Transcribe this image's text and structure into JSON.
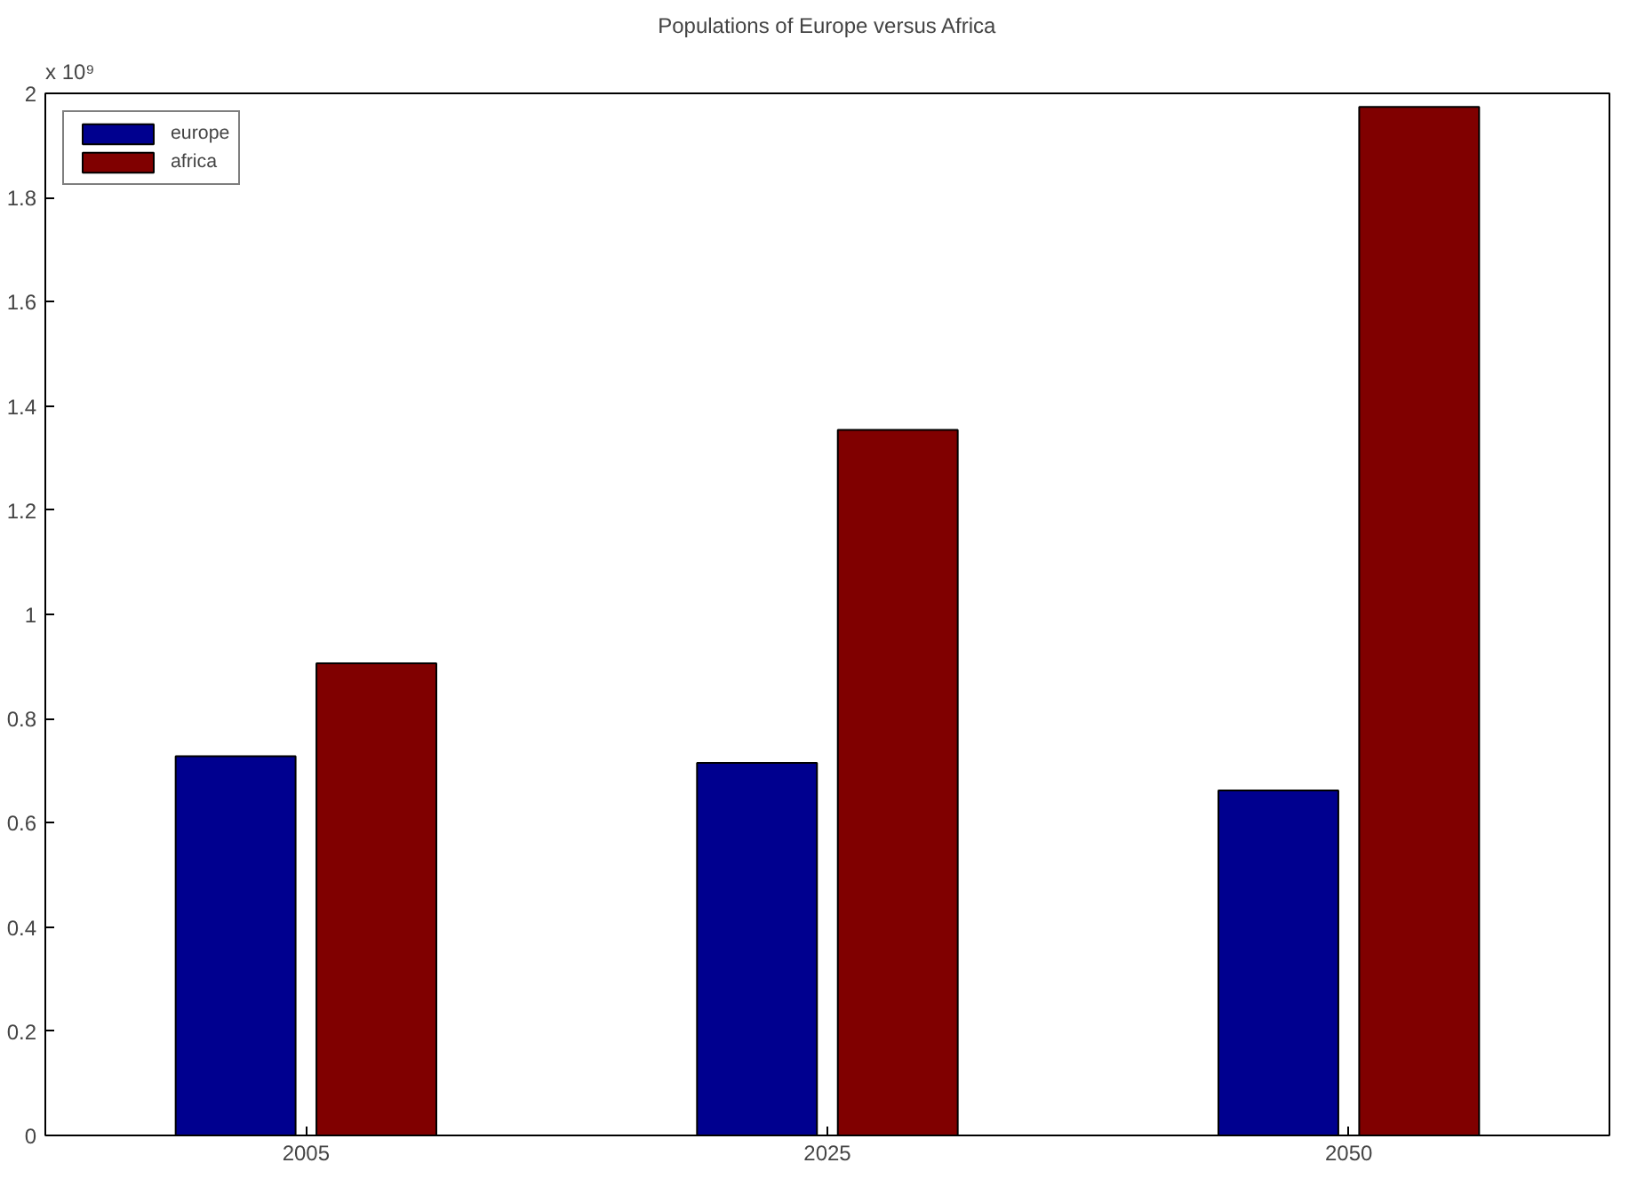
{
  "chart_data": {
    "type": "bar",
    "title": "Populations of Europe versus Africa",
    "categories": [
      "2005",
      "2025",
      "2050"
    ],
    "series": [
      {
        "name": "europe",
        "color": "#00008f",
        "values": [
          0.728,
          0.715,
          0.662
        ]
      },
      {
        "name": "africa",
        "color": "#800000",
        "values": [
          0.906,
          1.354,
          1.974
        ]
      }
    ],
    "ylim": [
      0,
      2
    ],
    "yticks": [
      0,
      0.2,
      0.4,
      0.6,
      0.8,
      1,
      1.2,
      1.4,
      1.6,
      1.8,
      2
    ],
    "annotations": [
      "x 10⁹"
    ],
    "legend": "top left",
    "grid": false
  }
}
